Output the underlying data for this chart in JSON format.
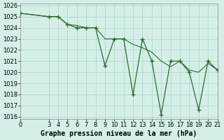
{
  "xlabel": "Graphe pression niveau de la mer (hPa)",
  "ylabel": "",
  "background_color": "#d5efe8",
  "grid_color": "#b0d8cc",
  "line_color": "#2d6b2d",
  "ylim": [
    1016,
    1026
  ],
  "xlim": [
    0,
    21
  ],
  "yticks": [
    1016,
    1017,
    1018,
    1019,
    1020,
    1021,
    1022,
    1023,
    1024,
    1025,
    1026
  ],
  "xticks": [
    0,
    3,
    4,
    5,
    6,
    7,
    8,
    9,
    10,
    11,
    12,
    13,
    14,
    15,
    16,
    17,
    18,
    19,
    20,
    21
  ],
  "main_x": [
    0,
    3,
    4,
    5,
    6,
    7,
    8,
    9,
    10,
    11,
    12,
    13,
    14,
    15,
    16,
    17,
    18,
    19,
    20,
    21
  ],
  "main_y": [
    1025.3,
    1025.0,
    1025.0,
    1024.3,
    1024.0,
    1024.0,
    1024.0,
    1020.6,
    1023.0,
    1023.0,
    1018.0,
    1023.0,
    1021.0,
    1016.2,
    1021.0,
    1021.0,
    1020.0,
    1016.6,
    1021.0,
    1020.2
  ],
  "trend_x": [
    0,
    3,
    4,
    5,
    6,
    7,
    8,
    9,
    10,
    11,
    12,
    13,
    14,
    15,
    16,
    17,
    18,
    19,
    20,
    21
  ],
  "trend_y": [
    1025.3,
    1025.0,
    1025.0,
    1024.3,
    1024.2,
    1024.0,
    1024.0,
    1023.0,
    1023.0,
    1023.0,
    1022.5,
    1022.2,
    1021.8,
    1021.0,
    1020.5,
    1021.0,
    1020.2,
    1020.0,
    1020.8,
    1020.2
  ],
  "xlabel_fontsize": 7,
  "tick_fontsize": 6,
  "xlabel_bold": true
}
